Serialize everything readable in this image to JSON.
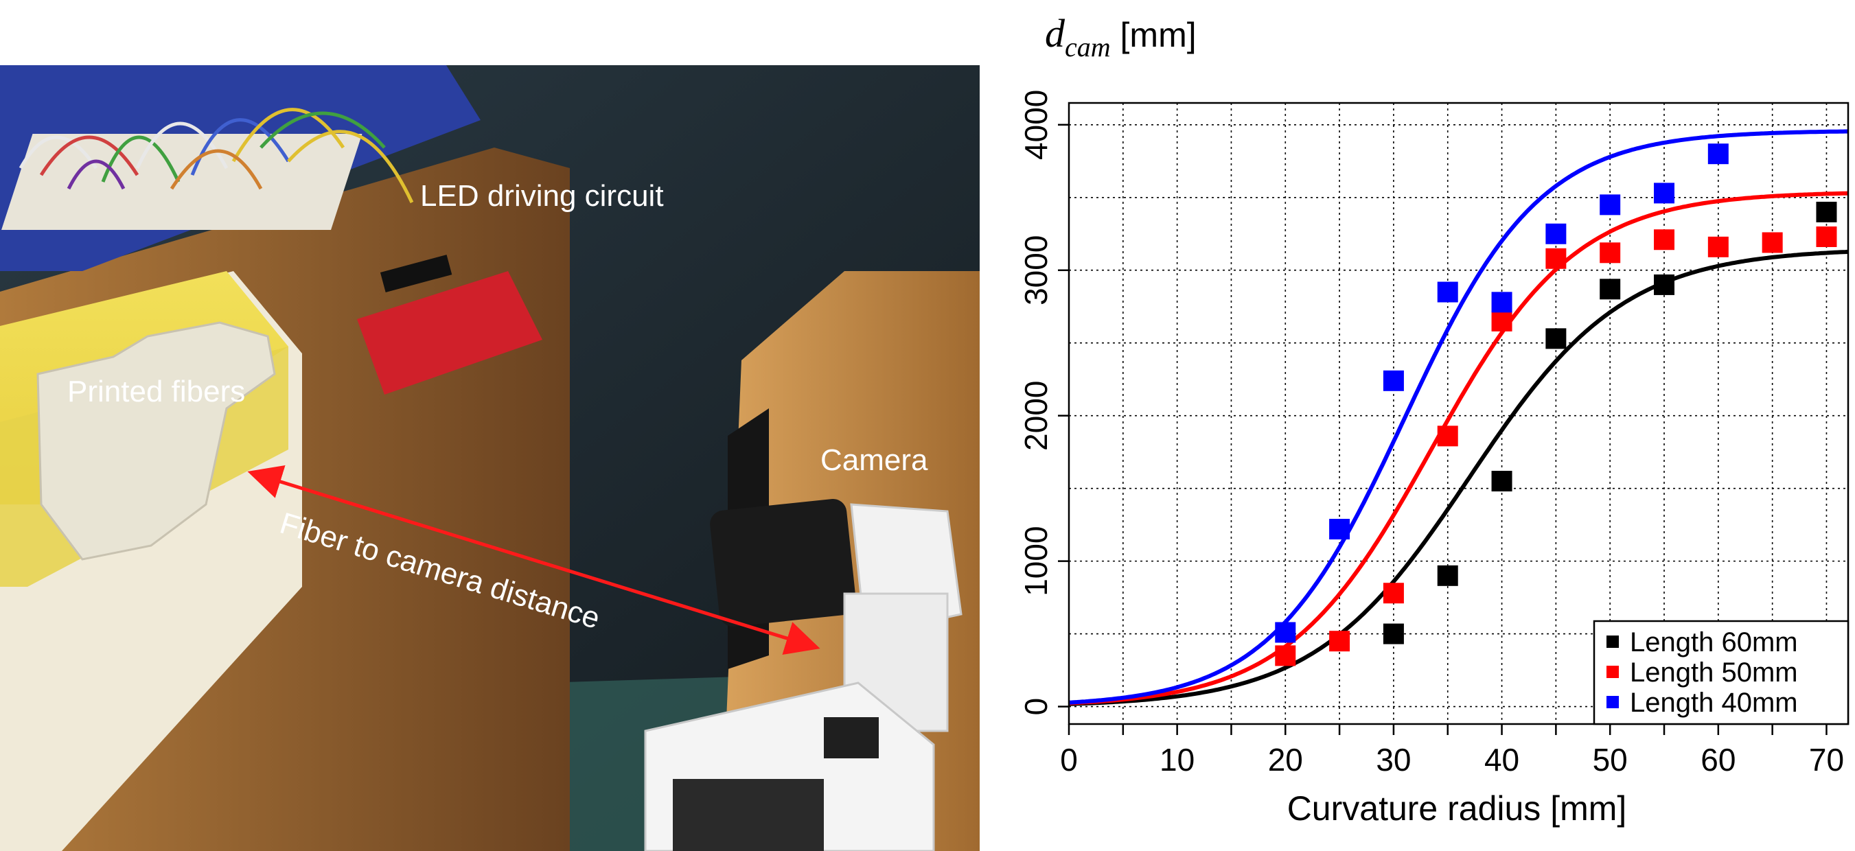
{
  "photo": {
    "labels": {
      "led_circuit": "LED driving circuit",
      "printed_fibers": "Printed fibers",
      "camera": "Camera",
      "distance": "Fiber to camera distance"
    }
  },
  "chart_data": {
    "type": "scatter",
    "title": "",
    "ylabel_main": "d",
    "ylabel_sub": "cam",
    "ylabel_unit": " [mm]",
    "xlabel": "Curvature radius [mm]",
    "xlim": [
      0,
      72
    ],
    "ylim": [
      -120,
      4150
    ],
    "xticks": [
      0,
      10,
      20,
      30,
      40,
      50,
      60,
      70
    ],
    "yticks": [
      0,
      1000,
      2000,
      3000,
      4000
    ],
    "grid": true,
    "legend_position": "bottom-right",
    "colors": {
      "blue": "#0000ff",
      "red": "#ff0000",
      "black": "#000000"
    },
    "series": [
      {
        "name": "Length 60mm",
        "color": "#000000",
        "x": [
          30,
          35,
          40,
          45,
          50,
          55,
          70
        ],
        "y": [
          500,
          900,
          1550,
          2530,
          2870,
          2900,
          3400
        ],
        "fit": {
          "L": 3150,
          "x0": 37,
          "k": 0.14
        }
      },
      {
        "name": "Length 50mm",
        "color": "#ff0000",
        "x": [
          20,
          25,
          30,
          35,
          40,
          45,
          50,
          55,
          60,
          65,
          70
        ],
        "y": [
          350,
          450,
          780,
          1860,
          2650,
          3080,
          3120,
          3210,
          3160,
          3190,
          3230
        ],
        "fit": {
          "L": 3540,
          "x0": 33.5,
          "k": 0.15
        }
      },
      {
        "name": "Length 40mm",
        "color": "#0000ff",
        "x": [
          20,
          25,
          30,
          35,
          40,
          45,
          50,
          55,
          60
        ],
        "y": [
          510,
          1220,
          2240,
          2850,
          2780,
          3250,
          3450,
          3530,
          3800
        ],
        "fit": {
          "L": 3960,
          "x0": 31,
          "k": 0.16
        }
      }
    ]
  }
}
